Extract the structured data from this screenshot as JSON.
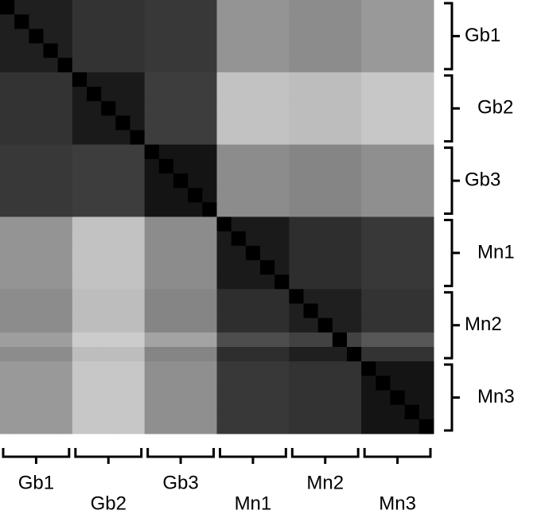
{
  "chart_data": {
    "type": "heatmap",
    "colormap": "gray",
    "zlim": [
      0,
      100
    ],
    "row_groups": [
      "Gb1",
      "Gb2",
      "Gb3",
      "Mn1",
      "Mn2",
      "Mn3"
    ],
    "col_groups": [
      "Gb1",
      "Gb2",
      "Gb3",
      "Mn1",
      "Mn2",
      "Mn3"
    ],
    "values": [
      [
        0,
        12,
        12,
        12,
        12,
        20,
        20,
        20,
        20,
        20,
        22,
        22,
        22,
        22,
        22,
        58,
        58,
        58,
        58,
        58,
        55,
        55,
        55,
        55,
        55,
        60,
        60,
        60,
        60,
        60
      ],
      [
        12,
        0,
        12,
        12,
        12,
        20,
        20,
        20,
        20,
        20,
        22,
        22,
        22,
        22,
        22,
        58,
        58,
        58,
        58,
        58,
        55,
        55,
        55,
        55,
        55,
        60,
        60,
        60,
        60,
        60
      ],
      [
        12,
        12,
        0,
        12,
        12,
        20,
        20,
        20,
        20,
        20,
        22,
        22,
        22,
        22,
        22,
        58,
        58,
        58,
        58,
        58,
        55,
        55,
        55,
        55,
        55,
        60,
        60,
        60,
        60,
        60
      ],
      [
        12,
        12,
        12,
        0,
        12,
        20,
        20,
        20,
        20,
        20,
        22,
        22,
        22,
        22,
        22,
        58,
        58,
        58,
        58,
        58,
        55,
        55,
        55,
        55,
        55,
        60,
        60,
        60,
        60,
        60
      ],
      [
        12,
        12,
        12,
        12,
        0,
        20,
        20,
        20,
        20,
        20,
        22,
        22,
        22,
        22,
        22,
        58,
        58,
        58,
        58,
        58,
        55,
        55,
        55,
        55,
        55,
        60,
        60,
        60,
        60,
        60
      ],
      [
        20,
        20,
        20,
        20,
        20,
        0,
        10,
        10,
        10,
        10,
        24,
        24,
        24,
        24,
        24,
        76,
        76,
        76,
        76,
        76,
        74,
        74,
        74,
        74,
        74,
        78,
        78,
        78,
        78,
        78
      ],
      [
        20,
        20,
        20,
        20,
        20,
        10,
        0,
        10,
        10,
        10,
        24,
        24,
        24,
        24,
        24,
        76,
        76,
        76,
        76,
        76,
        74,
        74,
        74,
        74,
        74,
        78,
        78,
        78,
        78,
        78
      ],
      [
        20,
        20,
        20,
        20,
        20,
        10,
        10,
        0,
        10,
        10,
        24,
        24,
        24,
        24,
        24,
        76,
        76,
        76,
        76,
        76,
        74,
        74,
        74,
        74,
        74,
        78,
        78,
        78,
        78,
        78
      ],
      [
        20,
        20,
        20,
        20,
        20,
        10,
        10,
        10,
        0,
        10,
        24,
        24,
        24,
        24,
        24,
        76,
        76,
        76,
        76,
        76,
        74,
        74,
        74,
        74,
        74,
        78,
        78,
        78,
        78,
        78
      ],
      [
        20,
        20,
        20,
        20,
        20,
        10,
        10,
        10,
        10,
        0,
        24,
        24,
        24,
        24,
        24,
        76,
        76,
        76,
        76,
        76,
        74,
        74,
        74,
        74,
        74,
        78,
        78,
        78,
        78,
        78
      ],
      [
        22,
        22,
        22,
        22,
        22,
        24,
        24,
        24,
        24,
        24,
        0,
        8,
        8,
        8,
        8,
        55,
        55,
        55,
        55,
        55,
        52,
        52,
        52,
        52,
        52,
        56,
        56,
        56,
        56,
        56
      ],
      [
        22,
        22,
        22,
        22,
        22,
        24,
        24,
        24,
        24,
        24,
        8,
        0,
        8,
        8,
        8,
        55,
        55,
        55,
        55,
        55,
        52,
        52,
        52,
        52,
        52,
        56,
        56,
        56,
        56,
        56
      ],
      [
        22,
        22,
        22,
        22,
        22,
        24,
        24,
        24,
        24,
        24,
        8,
        8,
        0,
        8,
        8,
        55,
        55,
        55,
        55,
        55,
        52,
        52,
        52,
        52,
        52,
        56,
        56,
        56,
        56,
        56
      ],
      [
        22,
        22,
        22,
        22,
        22,
        24,
        24,
        24,
        24,
        24,
        8,
        8,
        8,
        0,
        8,
        55,
        55,
        55,
        55,
        55,
        52,
        52,
        52,
        52,
        52,
        56,
        56,
        56,
        56,
        56
      ],
      [
        22,
        22,
        22,
        22,
        22,
        24,
        24,
        24,
        24,
        24,
        8,
        8,
        8,
        8,
        0,
        55,
        55,
        55,
        55,
        55,
        52,
        52,
        52,
        52,
        52,
        56,
        56,
        56,
        56,
        56
      ],
      [
        58,
        58,
        58,
        58,
        58,
        76,
        76,
        76,
        76,
        76,
        55,
        55,
        55,
        55,
        55,
        0,
        10,
        10,
        10,
        10,
        18,
        18,
        18,
        18,
        18,
        22,
        22,
        22,
        22,
        22
      ],
      [
        58,
        58,
        58,
        58,
        58,
        76,
        76,
        76,
        76,
        76,
        55,
        55,
        55,
        55,
        55,
        10,
        0,
        10,
        10,
        10,
        18,
        18,
        18,
        18,
        18,
        22,
        22,
        22,
        22,
        22
      ],
      [
        58,
        58,
        58,
        58,
        58,
        76,
        76,
        76,
        76,
        76,
        55,
        55,
        55,
        55,
        55,
        10,
        10,
        0,
        10,
        10,
        18,
        18,
        18,
        18,
        18,
        22,
        22,
        22,
        22,
        22
      ],
      [
        58,
        58,
        58,
        58,
        58,
        76,
        76,
        76,
        76,
        76,
        55,
        55,
        55,
        55,
        55,
        10,
        10,
        10,
        0,
        10,
        18,
        18,
        18,
        18,
        18,
        22,
        22,
        22,
        22,
        22
      ],
      [
        58,
        58,
        58,
        58,
        58,
        76,
        76,
        76,
        76,
        76,
        55,
        55,
        55,
        55,
        55,
        10,
        10,
        10,
        10,
        0,
        18,
        18,
        18,
        18,
        18,
        22,
        22,
        22,
        22,
        22
      ],
      [
        55,
        55,
        55,
        55,
        55,
        74,
        74,
        74,
        74,
        74,
        52,
        52,
        52,
        52,
        52,
        18,
        18,
        18,
        18,
        18,
        0,
        12,
        12,
        12,
        12,
        20,
        20,
        20,
        20,
        20
      ],
      [
        55,
        55,
        55,
        55,
        55,
        74,
        74,
        74,
        74,
        74,
        52,
        52,
        52,
        52,
        52,
        18,
        18,
        18,
        18,
        18,
        12,
        0,
        12,
        12,
        12,
        20,
        20,
        20,
        20,
        20
      ],
      [
        55,
        55,
        55,
        55,
        55,
        74,
        74,
        74,
        74,
        74,
        52,
        52,
        52,
        52,
        52,
        18,
        18,
        18,
        18,
        18,
        12,
        12,
        0,
        12,
        12,
        20,
        20,
        20,
        20,
        20
      ],
      [
        62,
        62,
        62,
        62,
        62,
        80,
        80,
        80,
        80,
        80,
        64,
        64,
        64,
        64,
        64,
        30,
        30,
        30,
        30,
        30,
        26,
        26,
        26,
        0,
        26,
        34,
        34,
        34,
        34,
        34
      ],
      [
        55,
        55,
        55,
        55,
        55,
        74,
        74,
        74,
        74,
        74,
        52,
        52,
        52,
        52,
        52,
        18,
        18,
        18,
        18,
        18,
        12,
        12,
        12,
        12,
        0,
        20,
        20,
        20,
        20,
        20
      ],
      [
        60,
        60,
        60,
        60,
        60,
        78,
        78,
        78,
        78,
        78,
        56,
        56,
        56,
        56,
        56,
        22,
        22,
        22,
        22,
        22,
        20,
        20,
        20,
        20,
        20,
        0,
        8,
        8,
        8,
        8
      ],
      [
        60,
        60,
        60,
        60,
        60,
        78,
        78,
        78,
        78,
        78,
        56,
        56,
        56,
        56,
        56,
        22,
        22,
        22,
        22,
        22,
        20,
        20,
        20,
        20,
        20,
        8,
        0,
        8,
        8,
        8
      ],
      [
        60,
        60,
        60,
        60,
        60,
        78,
        78,
        78,
        78,
        78,
        56,
        56,
        56,
        56,
        56,
        22,
        22,
        22,
        22,
        22,
        20,
        20,
        20,
        20,
        20,
        8,
        8,
        0,
        8,
        8
      ],
      [
        60,
        60,
        60,
        60,
        60,
        78,
        78,
        78,
        78,
        78,
        56,
        56,
        56,
        56,
        56,
        22,
        22,
        22,
        22,
        22,
        20,
        20,
        20,
        20,
        20,
        8,
        8,
        8,
        0,
        8
      ],
      [
        60,
        60,
        60,
        60,
        60,
        78,
        78,
        78,
        78,
        78,
        56,
        56,
        56,
        56,
        56,
        22,
        22,
        22,
        22,
        22,
        20,
        20,
        20,
        20,
        20,
        8,
        8,
        8,
        8,
        0
      ]
    ]
  }
}
